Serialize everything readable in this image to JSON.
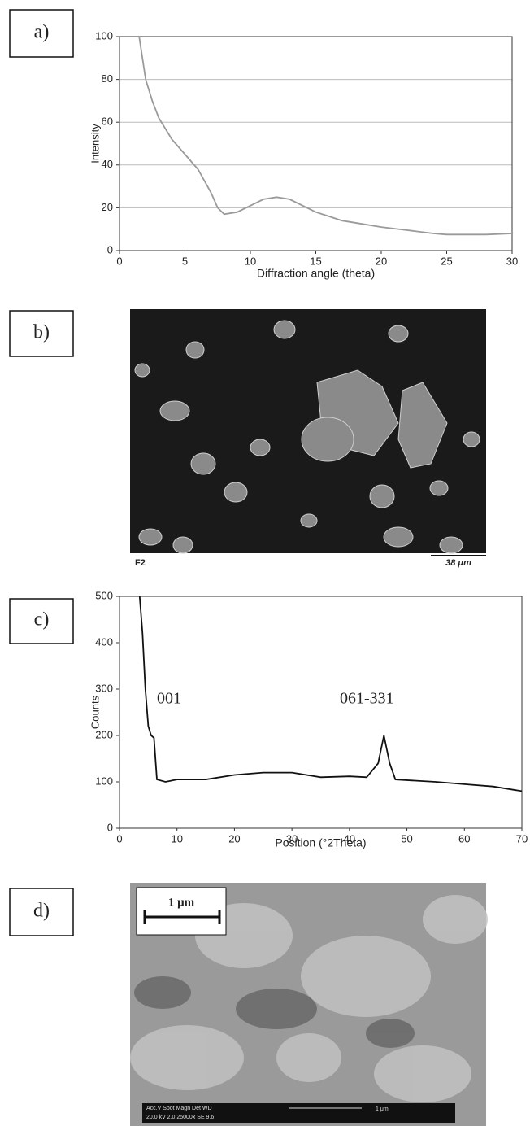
{
  "panels": [
    "a)",
    "b)",
    "c)",
    "d)"
  ],
  "chart_data": [
    {
      "type": "line",
      "x_label": "Diffraction angle (theta)",
      "y_label": "Intensity",
      "xlim": [
        0,
        30
      ],
      "ylim": [
        0,
        100
      ],
      "xticks": [
        0,
        5,
        10,
        15,
        20,
        25,
        30
      ],
      "yticks": [
        0,
        20,
        40,
        60,
        80,
        100
      ],
      "grid": true,
      "series": [
        {
          "color": "#9a9a9a",
          "x": [
            1.5,
            2,
            2.5,
            3,
            4,
            5,
            6,
            7,
            7.5,
            8,
            9,
            10,
            11,
            12,
            13,
            14,
            15,
            16,
            17,
            18,
            20,
            22,
            24,
            25,
            27,
            28,
            30
          ],
          "values": [
            100,
            80,
            70,
            62,
            52,
            45,
            38,
            27,
            20,
            17,
            18,
            21,
            24,
            25,
            24,
            21,
            18,
            16,
            14,
            13,
            11,
            9.5,
            8,
            7.5,
            7.5,
            7.5,
            8
          ]
        }
      ]
    },
    {
      "type": "line",
      "x_label": "Position (°2Theta)",
      "y_label": "Counts",
      "xlim": [
        0,
        70
      ],
      "ylim": [
        0,
        500
      ],
      "xticks": [
        0,
        10,
        20,
        30,
        40,
        50,
        60,
        70
      ],
      "yticks": [
        0,
        100,
        200,
        300,
        400,
        500
      ],
      "grid": false,
      "annotations": [
        "001",
        "061-331"
      ],
      "series": [
        {
          "color": "#111111",
          "x": [
            3.5,
            4,
            4.5,
            5,
            5.5,
            6,
            6.5,
            8,
            10,
            15,
            20,
            25,
            30,
            35,
            40,
            43,
            45,
            46,
            47,
            48,
            55,
            60,
            65,
            70
          ],
          "values": [
            500,
            420,
            300,
            220,
            200,
            195,
            105,
            100,
            105,
            105,
            115,
            120,
            120,
            110,
            112,
            110,
            140,
            200,
            140,
            105,
            100,
            95,
            90,
            80
          ]
        }
      ]
    }
  ],
  "images": [
    {
      "texts": [
        "F2",
        "38 μm"
      ]
    },
    {
      "texts": [
        "1 μm",
        "Acc.V  Spot  Magn   Det  WD",
        "20.0 kV 2.0  25000x  SE  9.6",
        "1 μm"
      ]
    }
  ]
}
